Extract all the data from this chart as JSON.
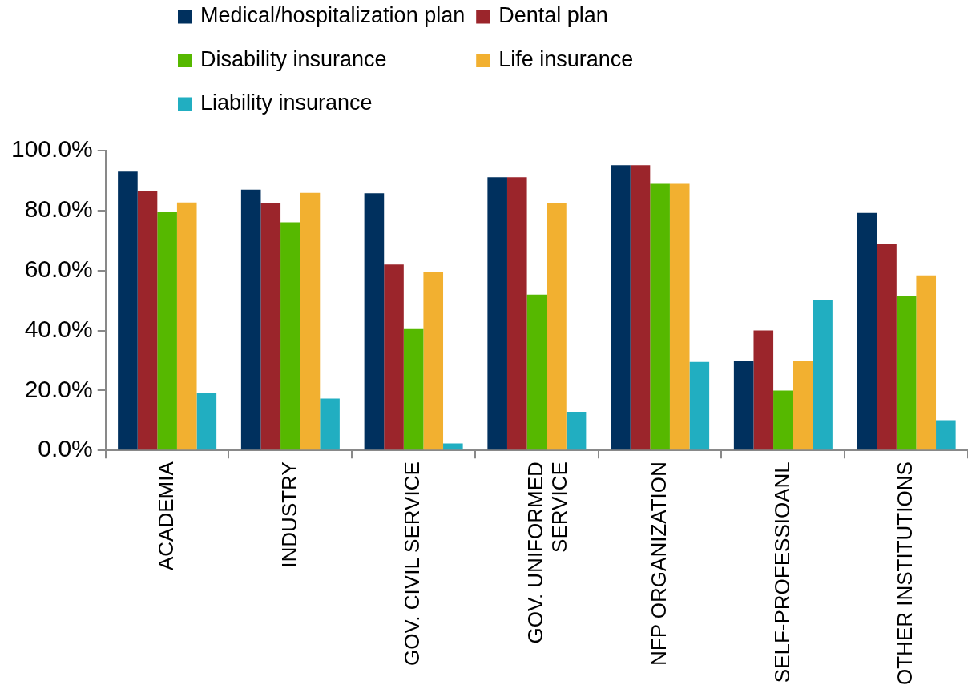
{
  "chart_data": {
    "type": "bar",
    "categories": [
      "ACADEMIA",
      "INDUSTRY",
      "GOV. CIVIL SERVICE",
      "GOV. UNIFORMED SERVICE",
      "NFP ORGANIZATION",
      "SELF-PROFESSIOANL",
      "OTHER INSTITUTIONS"
    ],
    "series": [
      {
        "name": "Medical/hospitalization plan",
        "color": "#00305e",
        "values": [
          93.0,
          87.0,
          85.8,
          91.1,
          95.1,
          30.0,
          79.2
        ]
      },
      {
        "name": "Dental plan",
        "color": "#9b252b",
        "values": [
          86.4,
          82.6,
          62.0,
          91.1,
          95.1,
          40.0,
          68.8
        ]
      },
      {
        "name": "Disability insurance",
        "color": "#56b800",
        "values": [
          79.7,
          76.1,
          40.5,
          52.0,
          88.9,
          20.0,
          51.5
        ]
      },
      {
        "name": "Life insurance",
        "color": "#f2b030",
        "values": [
          82.7,
          85.9,
          59.6,
          82.4,
          88.9,
          30.0,
          58.4
        ]
      },
      {
        "name": "Liability insurance",
        "color": "#21aec1",
        "values": [
          19.2,
          17.3,
          2.3,
          12.9,
          29.5,
          50.0,
          10.1
        ]
      }
    ],
    "ylim": [
      0,
      100
    ],
    "yticks": [
      {
        "value": 0,
        "label": "0.0%"
      },
      {
        "value": 20,
        "label": "20.0%"
      },
      {
        "value": 40,
        "label": "40.0%"
      },
      {
        "value": 60,
        "label": "60.0%"
      },
      {
        "value": 80,
        "label": "80.0%"
      },
      {
        "value": 100,
        "label": "100.0%"
      }
    ],
    "grid": false,
    "legend": "top"
  }
}
